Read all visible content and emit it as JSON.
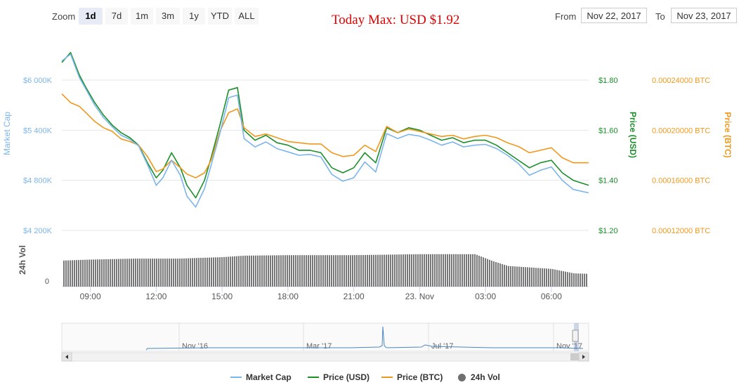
{
  "toolbar": {
    "zoom_label": "Zoom",
    "zoom_buttons": [
      "1d",
      "7d",
      "1m",
      "3m",
      "1y",
      "YTD",
      "ALL"
    ],
    "active_zoom": "1d",
    "from_label": "From",
    "from_value": "Nov 22, 2017",
    "to_label": "To",
    "to_value": "Nov 23, 2017"
  },
  "chart_data": {
    "type": "line",
    "title": "Today Max: USD $1.92",
    "x_tick_labels": [
      "09:00",
      "12:00",
      "15:00",
      "18:00",
      "21:00",
      "23. Nov",
      "03:00",
      "06:00"
    ],
    "x_start_hour": 7.7,
    "x_end_hour": 31.7,
    "x_tick_hours": [
      9,
      12,
      15,
      18,
      21,
      24,
      27,
      30
    ],
    "y_axes": {
      "market_cap": {
        "label": "Market Cap",
        "ticks": [
          "$4 200K",
          "$4 800K",
          "$5 400K",
          "$6 000K"
        ],
        "range": [
          4200,
          6000
        ]
      },
      "price_usd": {
        "label": "Price (USD)",
        "ticks": [
          "$1.20",
          "$1.40",
          "$1.60",
          "$1.80"
        ],
        "range": [
          1.2,
          1.8
        ]
      },
      "price_btc": {
        "label": "Price (BTC)",
        "ticks": [
          "0.00012000 BTC",
          "0.00016000 BTC",
          "0.00020000 BTC",
          "0.00024000 BTC"
        ],
        "range": [
          0.00012,
          0.00024
        ]
      },
      "volume": {
        "label": "24h Vol",
        "ticks": [
          "0"
        ]
      }
    },
    "series": [
      {
        "name": "Price (USD)",
        "color": "#1a8f2a",
        "x": [
          7.7,
          8.1,
          8.5,
          8.8,
          9.2,
          9.6,
          10.0,
          10.4,
          10.8,
          11.2,
          11.6,
          12.0,
          12.3,
          12.7,
          13.1,
          13.4,
          13.8,
          14.2,
          14.5,
          14.9,
          15.3,
          15.7,
          16.0,
          16.5,
          17.0,
          17.5,
          18.0,
          18.5,
          19.0,
          19.5,
          20.0,
          20.5,
          21.0,
          21.5,
          22.0,
          22.5,
          23.0,
          23.5,
          24.0,
          24.5,
          25.0,
          25.5,
          26.0,
          26.5,
          27.0,
          27.5,
          28.0,
          28.5,
          29.0,
          29.5,
          30.0,
          30.5,
          31.0,
          31.7
        ],
        "values": [
          1.87,
          1.91,
          1.82,
          1.77,
          1.71,
          1.66,
          1.62,
          1.59,
          1.57,
          1.54,
          1.47,
          1.41,
          1.44,
          1.51,
          1.45,
          1.38,
          1.33,
          1.4,
          1.49,
          1.62,
          1.76,
          1.77,
          1.6,
          1.56,
          1.58,
          1.55,
          1.54,
          1.52,
          1.52,
          1.51,
          1.45,
          1.43,
          1.45,
          1.51,
          1.47,
          1.61,
          1.59,
          1.61,
          1.6,
          1.58,
          1.56,
          1.57,
          1.55,
          1.56,
          1.56,
          1.54,
          1.51,
          1.48,
          1.45,
          1.47,
          1.48,
          1.43,
          1.4,
          1.38
        ]
      },
      {
        "name": "Price (BTC)",
        "color": "#f0981c",
        "x": [
          7.7,
          8.1,
          8.5,
          8.8,
          9.2,
          9.6,
          10.0,
          10.4,
          10.8,
          11.2,
          11.6,
          12.0,
          12.3,
          12.7,
          13.1,
          13.4,
          13.8,
          14.2,
          14.5,
          14.9,
          15.3,
          15.7,
          16.0,
          16.5,
          17.0,
          17.5,
          18.0,
          18.5,
          19.0,
          19.5,
          20.0,
          20.5,
          21.0,
          21.5,
          22.0,
          22.5,
          23.0,
          23.5,
          24.0,
          24.5,
          25.0,
          25.5,
          26.0,
          26.5,
          27.0,
          27.5,
          28.0,
          28.5,
          29.0,
          29.5,
          30.0,
          30.5,
          31.0,
          31.7
        ],
        "values": [
          0.000229,
          0.000222,
          0.000219,
          0.000214,
          0.000207,
          0.000202,
          0.000199,
          0.000193,
          0.000191,
          0.000188,
          0.000179,
          0.000167,
          0.000169,
          0.000176,
          0.00017,
          0.000165,
          0.000162,
          0.000166,
          0.000176,
          0.000199,
          0.000214,
          0.000217,
          0.000202,
          0.000195,
          0.000197,
          0.000194,
          0.000191,
          0.00019,
          0.000189,
          0.000189,
          0.000182,
          0.000179,
          0.00018,
          0.000188,
          0.000183,
          0.000203,
          0.000198,
          0.000201,
          0.000199,
          0.000197,
          0.000195,
          0.000196,
          0.000193,
          0.000195,
          0.000196,
          0.000194,
          0.00019,
          0.000187,
          0.000182,
          0.000184,
          0.000186,
          0.000178,
          0.000174,
          0.000174
        ]
      },
      {
        "name": "Market Cap",
        "color": "#7cb5ec",
        "x": [
          7.7,
          8.1,
          8.5,
          8.8,
          9.2,
          9.6,
          10.0,
          10.4,
          10.8,
          11.2,
          11.6,
          12.0,
          12.3,
          12.7,
          13.1,
          13.4,
          13.8,
          14.2,
          14.5,
          14.9,
          15.3,
          15.7,
          16.0,
          16.5,
          17.0,
          17.5,
          18.0,
          18.5,
          19.0,
          19.5,
          20.0,
          20.5,
          21.0,
          21.5,
          22.0,
          22.5,
          23.0,
          23.5,
          24.0,
          24.5,
          25.0,
          25.5,
          26.0,
          26.5,
          27.0,
          27.5,
          28.0,
          28.5,
          29.0,
          29.5,
          30.0,
          30.5,
          31.0,
          31.7
        ],
        "values": [
          6230,
          6310,
          6030,
          5890,
          5700,
          5550,
          5440,
          5340,
          5290,
          5210,
          4990,
          4740,
          4830,
          5040,
          4860,
          4610,
          4480,
          4700,
          4980,
          5360,
          5790,
          5820,
          5300,
          5200,
          5260,
          5180,
          5140,
          5100,
          5110,
          5080,
          4870,
          4790,
          4830,
          5020,
          4900,
          5360,
          5300,
          5350,
          5330,
          5280,
          5220,
          5260,
          5200,
          5220,
          5230,
          5180,
          5100,
          5000,
          4860,
          4920,
          4960,
          4800,
          4690,
          4650
        ]
      },
      {
        "name": "24h Vol",
        "color": "#7a7a7a",
        "type": "bar",
        "x": [
          7.7,
          9.0,
          11.0,
          13.0,
          15.0,
          16.0,
          18.0,
          21.0,
          24.0,
          26.5,
          27.3,
          28.0,
          30.0,
          31.0,
          31.7
        ],
        "values": [
          0.53,
          0.55,
          0.57,
          0.57,
          0.6,
          0.63,
          0.64,
          0.64,
          0.66,
          0.66,
          0.52,
          0.42,
          0.36,
          0.27,
          0.26
        ]
      }
    ],
    "navigator": {
      "x_tick_labels": [
        "Nov '16",
        "Mar '17",
        "Jul '17",
        "Nov '17"
      ]
    },
    "legend": [
      "Market Cap",
      "Price (USD)",
      "Price (BTC)",
      "24h Vol"
    ]
  }
}
